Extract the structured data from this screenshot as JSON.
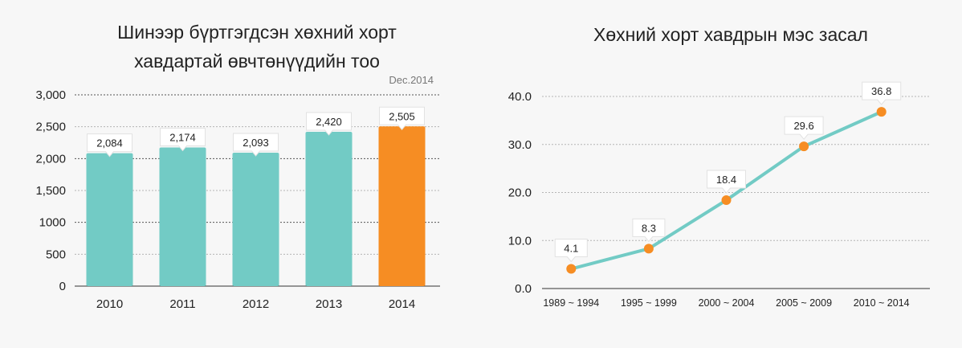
{
  "chart_data": [
    {
      "type": "bar",
      "title_lines": [
        "Шинээр бүртгэгдсэн хөхний хорт",
        "хавдартай өвчтөнүүдийн тоо"
      ],
      "note": "Dec.2014",
      "categories": [
        "2010",
        "2011",
        "2012",
        "2013",
        "2014"
      ],
      "values": [
        2084,
        2174,
        2093,
        2420,
        2505
      ],
      "value_labels": [
        "2,084",
        "2,174",
        "2,093",
        "2,420",
        "2,505"
      ],
      "y_ticks": [
        0,
        500,
        1000,
        1500,
        2000,
        2500,
        3000
      ],
      "y_tick_labels": [
        "0",
        "500",
        "1000",
        "1,500",
        "2,000",
        "2,500",
        "3,000"
      ],
      "ylim": [
        0,
        3000
      ],
      "grid": true,
      "colors": {
        "bar": "#72cbc5",
        "highlight": "#f68d23"
      },
      "highlight_index": 4
    },
    {
      "type": "line",
      "title": "Хөхний хорт хавдрын мэс засал",
      "categories": [
        "1989 ~ 1994",
        "1995 ~ 1999",
        "2000 ~ 2004",
        "2005 ~ 2009",
        "2010 ~ 2014"
      ],
      "values": [
        4.1,
        8.3,
        18.4,
        29.6,
        36.8
      ],
      "value_labels": [
        "4.1",
        "8.3",
        "18.4",
        "29.6",
        "36.8"
      ],
      "y_ticks": [
        0,
        10,
        20,
        30,
        40
      ],
      "y_tick_labels": [
        "0.0",
        "10.0",
        "20.0",
        "30.0",
        "40.0"
      ],
      "ylim": [
        0,
        40
      ],
      "grid": true,
      "colors": {
        "line": "#72cbc5",
        "marker": "#f68d23"
      }
    }
  ]
}
